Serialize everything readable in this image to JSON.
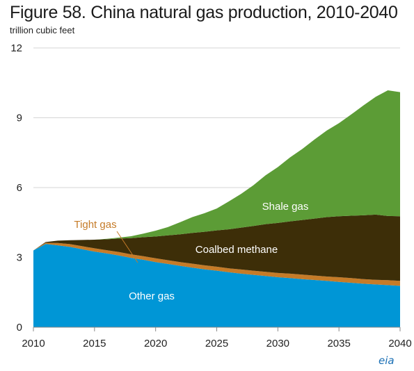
{
  "title": "Figure 58. China natural gas production, 2010-2040",
  "unit_label": "trillion  cubic feet",
  "logo_text": "eia",
  "chart_data": {
    "type": "area",
    "stacked": true,
    "title": "Figure 58. China natural gas production, 2010-2040",
    "ylabel": "trillion  cubic feet",
    "xlabel": "",
    "xlim": [
      2010,
      2040
    ],
    "ylim": [
      0,
      12
    ],
    "x_ticks": [
      "2010",
      "2015",
      "2020",
      "2025",
      "2030",
      "2035",
      "2040"
    ],
    "y_ticks": [
      "0",
      "3",
      "6",
      "9",
      "12"
    ],
    "x": [
      2010,
      2011,
      2012,
      2013,
      2014,
      2015,
      2016,
      2017,
      2018,
      2019,
      2020,
      2021,
      2022,
      2023,
      2024,
      2025,
      2026,
      2027,
      2028,
      2029,
      2030,
      2031,
      2032,
      2033,
      2034,
      2035,
      2036,
      2037,
      2038,
      2039,
      2040
    ],
    "grid": "horizontal",
    "series": [
      {
        "name": "Other gas",
        "color": "#0096d6",
        "values": [
          3.3,
          3.58,
          3.52,
          3.45,
          3.35,
          3.25,
          3.17,
          3.08,
          2.98,
          2.9,
          2.8,
          2.72,
          2.64,
          2.56,
          2.49,
          2.43,
          2.36,
          2.3,
          2.25,
          2.2,
          2.15,
          2.11,
          2.07,
          2.03,
          1.99,
          1.95,
          1.91,
          1.87,
          1.84,
          1.81,
          1.78
        ]
      },
      {
        "name": "Tight gas",
        "color": "#c57b28",
        "values": [
          0.0,
          0.05,
          0.1,
          0.12,
          0.13,
          0.14,
          0.14,
          0.15,
          0.15,
          0.15,
          0.16,
          0.16,
          0.16,
          0.17,
          0.17,
          0.17,
          0.17,
          0.18,
          0.18,
          0.18,
          0.18,
          0.19,
          0.19,
          0.19,
          0.19,
          0.2,
          0.2,
          0.2,
          0.2,
          0.21,
          0.21
        ]
      },
      {
        "name": "Coalbed methane",
        "color": "#3d2e08",
        "values": [
          0.0,
          0.03,
          0.1,
          0.17,
          0.27,
          0.37,
          0.47,
          0.58,
          0.7,
          0.82,
          0.94,
          1.07,
          1.19,
          1.32,
          1.44,
          1.56,
          1.68,
          1.8,
          1.92,
          2.05,
          2.15,
          2.25,
          2.35,
          2.45,
          2.55,
          2.62,
          2.68,
          2.74,
          2.8,
          2.76,
          2.78
        ]
      },
      {
        "name": "Shale gas",
        "color": "#5c9c36",
        "values": [
          0.0,
          0.0,
          0.0,
          0.0,
          0.0,
          0.0,
          0.02,
          0.04,
          0.08,
          0.15,
          0.25,
          0.35,
          0.52,
          0.68,
          0.8,
          0.94,
          1.2,
          1.45,
          1.75,
          2.1,
          2.4,
          2.75,
          3.05,
          3.4,
          3.72,
          4.0,
          4.35,
          4.72,
          5.06,
          5.4,
          5.33
        ]
      }
    ],
    "annotations": [
      {
        "text": "Shale gas",
        "color": "#ffffff",
        "series": "Shale gas"
      },
      {
        "text": "Coalbed methane",
        "color": "#ffffff",
        "series": "Coalbed methane"
      },
      {
        "text": "Tight gas",
        "color": "#c57b28",
        "series": "Tight gas"
      },
      {
        "text": "Other gas",
        "color": "#ffffff",
        "series": "Other gas"
      }
    ]
  }
}
